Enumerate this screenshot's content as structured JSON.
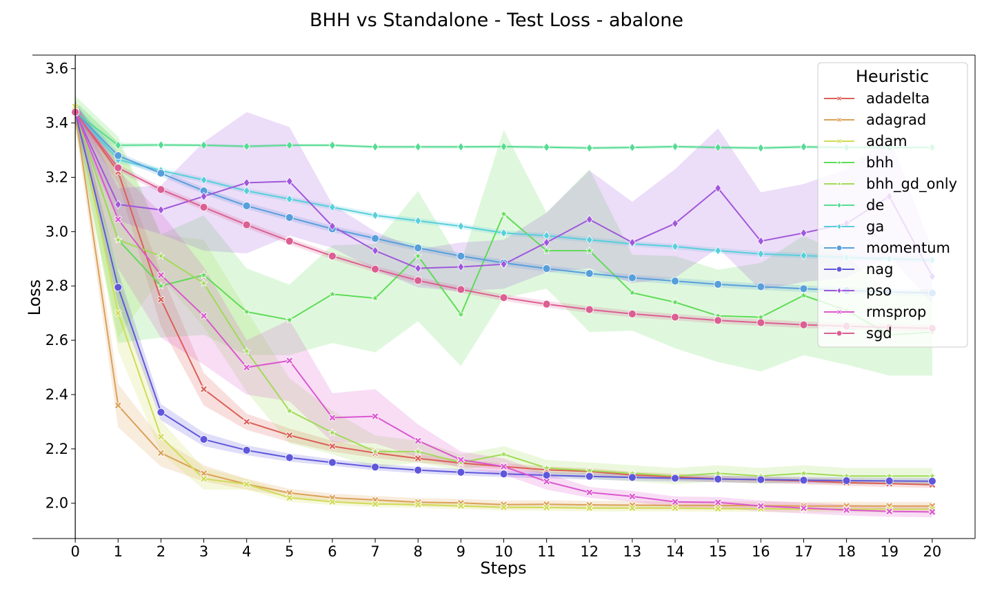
{
  "chart_data": {
    "type": "line",
    "title": "BHH vs Standalone - Test Loss - abalone",
    "xlabel": "Steps",
    "ylabel": "Loss",
    "xlim": [
      -1,
      21
    ],
    "ylim": [
      1.87,
      3.65
    ],
    "x": [
      0,
      1,
      2,
      3,
      4,
      5,
      6,
      7,
      8,
      9,
      10,
      11,
      12,
      13,
      14,
      15,
      16,
      17,
      18,
      19,
      20
    ],
    "xticks": [
      "0",
      "1",
      "2",
      "3",
      "4",
      "5",
      "6",
      "7",
      "8",
      "9",
      "10",
      "11",
      "12",
      "13",
      "14",
      "15",
      "16",
      "17",
      "18",
      "19",
      "20"
    ],
    "yticks": [
      {
        "value": 2.0,
        "label": "2.0"
      },
      {
        "value": 2.2,
        "label": "2.2"
      },
      {
        "value": 2.4,
        "label": "2.4"
      },
      {
        "value": 2.6,
        "label": "2.6"
      },
      {
        "value": 2.8,
        "label": "2.8"
      },
      {
        "value": 3.0,
        "label": "3.0"
      },
      {
        "value": 3.2,
        "label": "3.2"
      },
      {
        "value": 3.4,
        "label": "3.4"
      },
      {
        "value": 3.6,
        "label": "3.6"
      }
    ],
    "grid": false,
    "legend": {
      "title": "Heuristic",
      "placement": "top-right"
    },
    "series": [
      {
        "name": "adadelta",
        "color": "#db5f57",
        "marker": "x",
        "values": [
          3.44,
          3.22,
          2.75,
          2.42,
          2.3,
          2.25,
          2.21,
          2.185,
          2.165,
          2.148,
          2.135,
          2.123,
          2.117,
          2.104,
          2.097,
          2.09,
          2.086,
          2.082,
          2.076,
          2.072,
          2.068
        ],
        "band": [
          0.03,
          0.04,
          0.1,
          0.06,
          0.03,
          0.025,
          0.02,
          0.018,
          0.015,
          0.012,
          0.012,
          0.012,
          0.012,
          0.012,
          0.012,
          0.012,
          0.012,
          0.012,
          0.012,
          0.012,
          0.012
        ]
      },
      {
        "name": "adagrad",
        "color": "#dba057",
        "marker": "x",
        "values": [
          3.44,
          2.36,
          2.185,
          2.11,
          2.07,
          2.038,
          2.02,
          2.012,
          2.004,
          2.001,
          1.995,
          1.996,
          1.994,
          1.993,
          1.992,
          1.992,
          1.991,
          1.99,
          1.99,
          1.99,
          1.99
        ],
        "band": [
          0.05,
          0.08,
          0.05,
          0.03,
          0.02,
          0.015,
          0.015,
          0.015,
          0.015,
          0.015,
          0.015,
          0.015,
          0.015,
          0.015,
          0.015,
          0.015,
          0.015,
          0.015,
          0.015,
          0.015,
          0.015
        ]
      },
      {
        "name": "adam",
        "color": "#d0db57",
        "marker": "x",
        "values": [
          3.46,
          2.7,
          2.245,
          2.09,
          2.07,
          2.02,
          2.005,
          1.997,
          1.995,
          1.99,
          1.985,
          1.984,
          1.982,
          1.982,
          1.982,
          1.98,
          1.98,
          1.978,
          1.978,
          1.978,
          1.978
        ],
        "band": [
          0.04,
          0.14,
          0.06,
          0.04,
          0.02,
          0.015,
          0.012,
          0.012,
          0.012,
          0.012,
          0.012,
          0.012,
          0.012,
          0.012,
          0.012,
          0.012,
          0.012,
          0.012,
          0.012,
          0.012,
          0.012
        ]
      },
      {
        "name": "bhh",
        "color": "#5fdb57",
        "marker": "star",
        "values": [
          3.44,
          2.97,
          2.8,
          2.84,
          2.705,
          2.675,
          2.77,
          2.755,
          2.91,
          2.695,
          3.065,
          2.93,
          2.93,
          2.775,
          2.74,
          2.69,
          2.685,
          2.765,
          2.71,
          2.62,
          2.63
        ],
        "band": [
          0.06,
          0.38,
          0.19,
          0.22,
          0.16,
          0.13,
          0.18,
          0.2,
          0.24,
          0.19,
          0.31,
          0.14,
          0.3,
          0.14,
          0.17,
          0.17,
          0.2,
          0.22,
          0.2,
          0.15,
          0.16
        ]
      },
      {
        "name": "bhh_gd_only",
        "color": "#a0db57",
        "marker": "star",
        "values": [
          3.44,
          2.97,
          2.91,
          2.81,
          2.56,
          2.34,
          2.26,
          2.19,
          2.19,
          2.15,
          2.18,
          2.13,
          2.12,
          2.11,
          2.1,
          2.11,
          2.1,
          2.11,
          2.1,
          2.1,
          2.1
        ],
        "band": [
          0.04,
          0.36,
          0.08,
          0.16,
          0.15,
          0.12,
          0.08,
          0.06,
          0.04,
          0.03,
          0.03,
          0.03,
          0.03,
          0.03,
          0.03,
          0.03,
          0.03,
          0.03,
          0.03,
          0.03,
          0.03
        ]
      },
      {
        "name": "de",
        "color": "#57db93",
        "marker": "diamond",
        "values": [
          3.44,
          3.318,
          3.319,
          3.318,
          3.314,
          3.318,
          3.318,
          3.312,
          3.312,
          3.312,
          3.313,
          3.311,
          3.308,
          3.31,
          3.313,
          3.31,
          3.308,
          3.312,
          3.31,
          3.31,
          3.31
        ],
        "band": [
          0.04,
          0.01,
          0.006,
          0.006,
          0.006,
          0.006,
          0.006,
          0.006,
          0.006,
          0.006,
          0.006,
          0.006,
          0.006,
          0.006,
          0.006,
          0.006,
          0.006,
          0.006,
          0.006,
          0.006,
          0.006
        ]
      },
      {
        "name": "ga",
        "color": "#57cfdb",
        "marker": "diamond",
        "values": [
          3.44,
          3.265,
          3.225,
          3.19,
          3.15,
          3.12,
          3.09,
          3.06,
          3.04,
          3.02,
          2.995,
          2.985,
          2.97,
          2.955,
          2.945,
          2.93,
          2.918,
          2.912,
          2.905,
          2.9,
          2.895
        ],
        "band": [
          0.03,
          0.012,
          0.01,
          0.01,
          0.01,
          0.01,
          0.01,
          0.01,
          0.01,
          0.01,
          0.01,
          0.01,
          0.01,
          0.01,
          0.01,
          0.01,
          0.01,
          0.01,
          0.01,
          0.01,
          0.01
        ]
      },
      {
        "name": "momentum",
        "color": "#579fdb",
        "marker": "circle",
        "values": [
          3.44,
          3.28,
          3.215,
          3.15,
          3.095,
          3.052,
          3.01,
          2.975,
          2.94,
          2.91,
          2.885,
          2.864,
          2.846,
          2.83,
          2.818,
          2.806,
          2.797,
          2.79,
          2.783,
          2.778,
          2.774
        ],
        "band": [
          0.03,
          0.012,
          0.012,
          0.012,
          0.012,
          0.012,
          0.012,
          0.012,
          0.012,
          0.012,
          0.012,
          0.012,
          0.012,
          0.012,
          0.012,
          0.012,
          0.012,
          0.012,
          0.012,
          0.012,
          0.012
        ]
      },
      {
        "name": "nag",
        "color": "#5f57db",
        "marker": "circle",
        "values": [
          3.44,
          2.795,
          2.335,
          2.235,
          2.195,
          2.168,
          2.15,
          2.133,
          2.122,
          2.114,
          2.108,
          2.103,
          2.099,
          2.095,
          2.092,
          2.089,
          2.087,
          2.085,
          2.083,
          2.082,
          2.081
        ],
        "band": [
          0.04,
          0.06,
          0.03,
          0.025,
          0.018,
          0.015,
          0.012,
          0.012,
          0.012,
          0.012,
          0.012,
          0.012,
          0.012,
          0.012,
          0.012,
          0.012,
          0.012,
          0.012,
          0.012,
          0.012,
          0.012
        ]
      },
      {
        "name": "pso",
        "color": "#a057db",
        "marker": "diamond",
        "values": [
          3.44,
          3.1,
          3.08,
          3.13,
          3.18,
          3.185,
          3.02,
          2.93,
          2.865,
          2.87,
          2.88,
          2.96,
          3.045,
          2.96,
          3.03,
          3.16,
          2.965,
          2.995,
          3.03,
          3.13,
          2.835
        ],
        "band": [
          0.04,
          0.06,
          0.09,
          0.2,
          0.26,
          0.2,
          0.08,
          0.07,
          0.07,
          0.09,
          0.09,
          0.11,
          0.18,
          0.15,
          0.2,
          0.22,
          0.18,
          0.18,
          0.2,
          0.22,
          0.1
        ]
      },
      {
        "name": "rmsprop",
        "color": "#db57cf",
        "marker": "x",
        "values": [
          3.44,
          3.045,
          2.84,
          2.69,
          2.5,
          2.525,
          2.315,
          2.32,
          2.23,
          2.16,
          2.135,
          2.08,
          2.04,
          2.025,
          2.005,
          2.003,
          1.99,
          1.982,
          1.975,
          1.97,
          1.968
        ],
        "band": [
          0.04,
          0.18,
          0.23,
          0.18,
          0.1,
          0.15,
          0.09,
          0.1,
          0.06,
          0.03,
          0.03,
          0.03,
          0.02,
          0.02,
          0.02,
          0.02,
          0.02,
          0.02,
          0.02,
          0.02,
          0.02
        ]
      },
      {
        "name": "sgd",
        "color": "#db5f93",
        "marker": "circle",
        "values": [
          3.44,
          3.235,
          3.155,
          3.09,
          3.025,
          2.965,
          2.91,
          2.862,
          2.82,
          2.787,
          2.757,
          2.733,
          2.713,
          2.697,
          2.685,
          2.673,
          2.665,
          2.657,
          2.652,
          2.647,
          2.644
        ],
        "band": [
          0.03,
          0.012,
          0.012,
          0.012,
          0.012,
          0.012,
          0.012,
          0.012,
          0.012,
          0.012,
          0.012,
          0.012,
          0.012,
          0.012,
          0.012,
          0.012,
          0.012,
          0.012,
          0.012,
          0.012,
          0.012
        ]
      }
    ]
  }
}
